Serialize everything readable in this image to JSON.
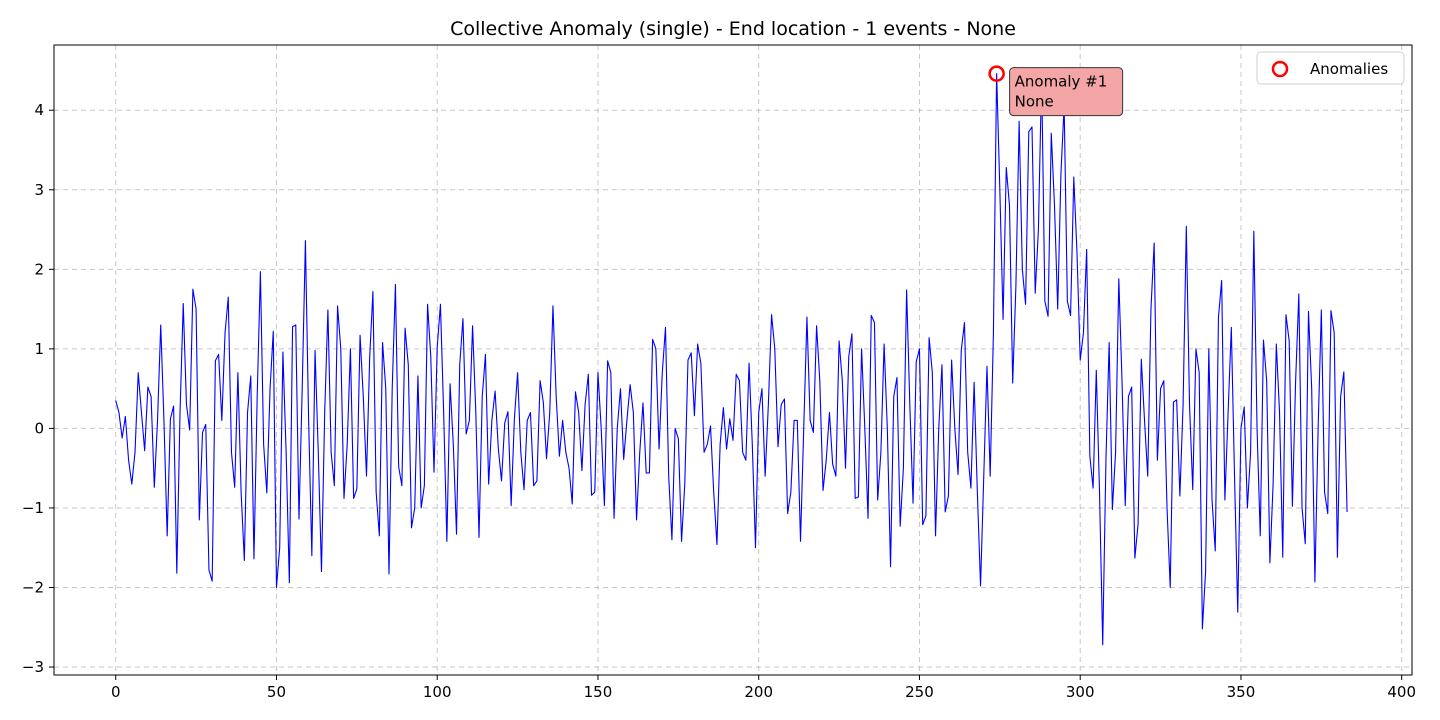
{
  "chart_data": {
    "type": "line",
    "title": "Collective Anomaly (single) - End location - 1 events - None",
    "xlabel": "",
    "ylabel": "",
    "xlim": [
      -19.2,
      403.2
    ],
    "ylim": [
      -3.1,
      4.82
    ],
    "xticks": [
      0,
      50,
      100,
      150,
      200,
      250,
      300,
      350,
      400
    ],
    "xtick_labels": [
      "0",
      "50",
      "100",
      "150",
      "200",
      "250",
      "300",
      "350",
      "400"
    ],
    "yticks": [
      -3,
      -2,
      -1,
      0,
      1,
      2,
      3,
      4
    ],
    "ytick_labels": [
      "−3",
      "−2",
      "−1",
      "0",
      "1",
      "2",
      "3",
      "4"
    ],
    "grid": true,
    "legend_position": "top-right",
    "colors": {
      "series": "#0000ff",
      "anomaly_marker": "#ff0000",
      "annotation_fill": "#f4a6a6",
      "grid": "#b0b0b0"
    },
    "series": [
      {
        "x_start": 0,
        "x_step": 1,
        "values": [
          0.35,
          0.2,
          -0.12,
          0.15,
          -0.4,
          -0.7,
          -0.3,
          0.7,
          0.2,
          -0.28,
          0.52,
          0.4,
          -0.74,
          0.1,
          1.3,
          0.1,
          -1.35,
          0.12,
          0.28,
          -1.82,
          0.2,
          1.57,
          0.3,
          -0.02,
          1.75,
          1.5,
          -1.15,
          -0.05,
          0.05,
          -1.78,
          -1.92,
          0.85,
          0.93,
          0.1,
          1.2,
          1.65,
          -0.3,
          -0.74,
          0.7,
          -0.8,
          -1.66,
          0.2,
          0.66,
          -1.64,
          0.4,
          1.97,
          -0.2,
          -0.81,
          0.5,
          1.22,
          -2.0,
          -1.5,
          0.96,
          -0.3,
          -1.94,
          1.28,
          1.3,
          -1.14,
          0.5,
          2.36,
          0.1,
          -1.6,
          0.98,
          -0.3,
          -1.8,
          0.2,
          1.49,
          -0.3,
          -0.72,
          1.54,
          1.0,
          -0.88,
          -0.2,
          1.0,
          -0.88,
          -0.76,
          1.17,
          0.4,
          -0.6,
          0.9,
          1.72,
          -0.8,
          -1.35,
          1.08,
          0.5,
          -1.83,
          0.5,
          1.81,
          -0.48,
          -0.72,
          1.26,
          0.8,
          -1.25,
          -1.0,
          0.66,
          -1.0,
          -0.72,
          1.56,
          0.9,
          -0.55,
          1.02,
          1.56,
          0.2,
          -1.42,
          0.56,
          -0.2,
          -1.33,
          0.8,
          1.38,
          -0.07,
          0.1,
          1.29,
          0.2,
          -1.37,
          0.4,
          0.93,
          -0.7,
          0.1,
          0.47,
          -0.25,
          -0.66,
          0.07,
          0.21,
          -0.97,
          0.12,
          0.7,
          -0.3,
          -0.77,
          0.1,
          0.2,
          -0.72,
          -0.66,
          0.6,
          0.33,
          -0.38,
          0.2,
          1.54,
          0.4,
          -0.35,
          0.1,
          -0.3,
          -0.5,
          -0.95,
          0.46,
          0.2,
          -0.53,
          0.3,
          0.68,
          -0.84,
          -0.8,
          0.7,
          0.0,
          -0.97,
          0.85,
          0.7,
          -1.13,
          0.0,
          0.5,
          -0.39,
          0.1,
          0.55,
          0.2,
          -1.15,
          -0.3,
          0.32,
          -0.56,
          -0.56,
          1.12,
          1.0,
          -0.26,
          0.7,
          1.27,
          -0.6,
          -1.4,
          0.0,
          -0.13,
          -1.42,
          -0.7,
          0.86,
          0.95,
          0.16,
          1.06,
          0.82,
          -0.3,
          -0.2,
          0.03,
          -0.8,
          -1.46,
          -0.2,
          0.26,
          -0.26,
          0.12,
          -0.15,
          0.68,
          0.6,
          -0.3,
          -0.4,
          0.82,
          -0.2,
          -1.5,
          0.2,
          0.5,
          -0.6,
          0.3,
          1.43,
          1.0,
          -0.23,
          0.3,
          0.37,
          -1.07,
          -0.8,
          0.1,
          0.1,
          -1.42,
          0.0,
          1.4,
          0.1,
          -0.05,
          1.29,
          0.6,
          -0.78,
          -0.4,
          0.2,
          -0.45,
          -0.6,
          1.1,
          0.6,
          -0.5,
          0.9,
          1.19,
          -0.88,
          -0.86,
          1.0,
          0.0,
          -1.13,
          1.42,
          1.33,
          -0.9,
          -0.3,
          1.06,
          0.0,
          -1.74,
          0.4,
          0.64,
          -1.23,
          -0.5,
          1.74,
          0.3,
          -0.94,
          0.84,
          1.0,
          -1.21,
          -1.1,
          1.14,
          0.7,
          -1.35,
          0.0,
          0.8,
          -1.05,
          -0.85,
          0.86,
          0.0,
          -0.58,
          0.98,
          1.33,
          -0.3,
          -0.75,
          0.58,
          -0.8,
          -1.98,
          -0.6,
          0.78,
          -0.6,
          1.2,
          4.46,
          3.0,
          1.37,
          3.28,
          2.8,
          0.57,
          1.8,
          3.86,
          2.0,
          1.56,
          3.73,
          3.79,
          1.7,
          2.5,
          4.45,
          1.6,
          1.41,
          3.71,
          2.8,
          1.5,
          3.2,
          4.06,
          1.6,
          1.42,
          3.16,
          2.2,
          0.86,
          1.2,
          2.25,
          -0.35,
          -0.75,
          0.73,
          -0.8,
          -2.72,
          -0.4,
          1.08,
          -1.02,
          -0.3,
          1.88,
          0.6,
          -0.97,
          0.4,
          0.52,
          -1.63,
          -1.2,
          0.87,
          0.1,
          -0.6,
          1.5,
          2.33,
          -0.4,
          0.5,
          0.6,
          -1.0,
          -2.0,
          0.33,
          0.36,
          -0.85,
          0.3,
          2.54,
          0.3,
          -0.77,
          1.0,
          0.7,
          -2.52,
          -1.8,
          1.0,
          -0.9,
          -1.54,
          1.4,
          1.86,
          -0.9,
          0.2,
          1.27,
          -0.6,
          -2.31,
          0.0,
          0.27,
          -1.0,
          -0.3,
          2.48,
          0.0,
          -1.35,
          1.11,
          0.6,
          -1.69,
          -0.7,
          1.06,
          0.2,
          -1.62,
          1.43,
          1.1,
          -0.98,
          0.6,
          1.69,
          -1.0,
          -1.45,
          1.47,
          0.5,
          -1.93,
          0.0,
          1.49,
          -0.8,
          -1.07,
          1.48,
          1.2,
          -1.62,
          0.4,
          0.71,
          -1.05
        ]
      }
    ],
    "anomalies": [
      {
        "x": 274,
        "y": 4.46,
        "label_line1": "Anomaly #1",
        "label_line2": "None"
      }
    ],
    "legend": {
      "entries": [
        "Anomalies"
      ]
    }
  }
}
